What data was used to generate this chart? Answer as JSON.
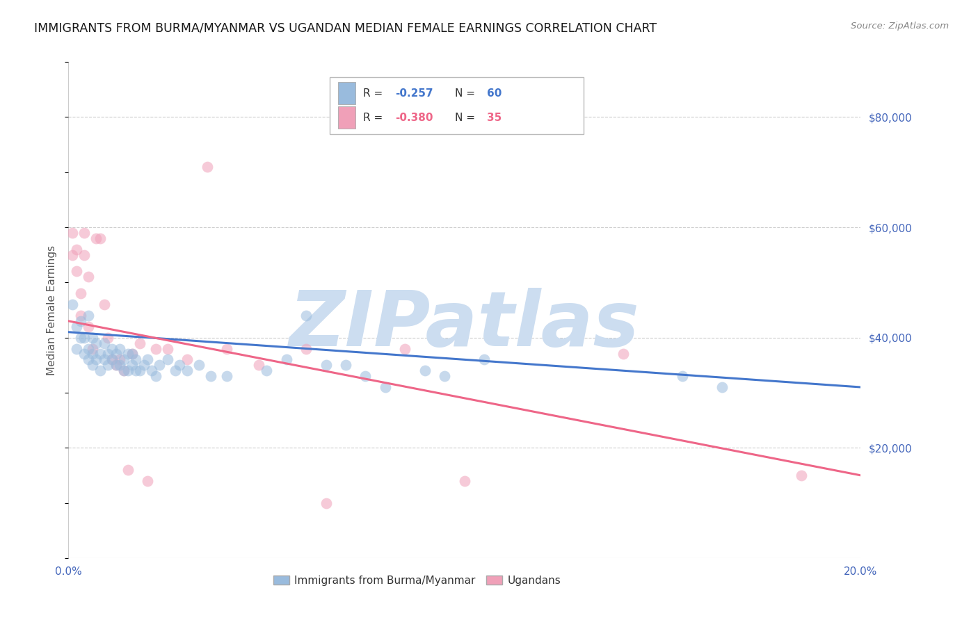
{
  "title": "IMMIGRANTS FROM BURMA/MYANMAR VS UGANDAN MEDIAN FEMALE EARNINGS CORRELATION CHART",
  "source": "Source: ZipAtlas.com",
  "ylabel": "Median Female Earnings",
  "xlim": [
    0.0,
    0.2
  ],
  "ylim": [
    0,
    90000
  ],
  "yticks": [
    0,
    20000,
    40000,
    60000,
    80000
  ],
  "ytick_labels": [
    "",
    "$20,000",
    "$40,000",
    "$60,000",
    "$80,000"
  ],
  "xticks": [
    0.0,
    0.05,
    0.1,
    0.15,
    0.2
  ],
  "xtick_labels": [
    "0.0%",
    "",
    "",
    "",
    "20.0%"
  ],
  "watermark": "ZIPatlas",
  "blue_R": "-0.257",
  "blue_N": "60",
  "pink_R": "-0.380",
  "pink_N": "35",
  "blue_label": "Immigrants from Burma/Myanmar",
  "pink_label": "Ugandans",
  "blue_scatter_x": [
    0.001,
    0.002,
    0.002,
    0.003,
    0.003,
    0.004,
    0.004,
    0.005,
    0.005,
    0.005,
    0.006,
    0.006,
    0.006,
    0.007,
    0.007,
    0.008,
    0.008,
    0.009,
    0.009,
    0.01,
    0.01,
    0.011,
    0.011,
    0.012,
    0.012,
    0.013,
    0.013,
    0.014,
    0.014,
    0.015,
    0.015,
    0.016,
    0.016,
    0.017,
    0.017,
    0.018,
    0.019,
    0.02,
    0.021,
    0.022,
    0.023,
    0.025,
    0.027,
    0.028,
    0.03,
    0.033,
    0.036,
    0.04,
    0.05,
    0.055,
    0.06,
    0.065,
    0.07,
    0.075,
    0.08,
    0.09,
    0.095,
    0.105,
    0.155,
    0.165
  ],
  "blue_scatter_y": [
    46000,
    38000,
    42000,
    40000,
    43000,
    37000,
    40000,
    36000,
    38000,
    44000,
    35000,
    37000,
    40000,
    36000,
    39000,
    34000,
    37000,
    36000,
    39000,
    35000,
    37000,
    36000,
    38000,
    35000,
    37000,
    35000,
    38000,
    34000,
    36000,
    34000,
    37000,
    35000,
    37000,
    34000,
    36000,
    34000,
    35000,
    36000,
    34000,
    33000,
    35000,
    36000,
    34000,
    35000,
    34000,
    35000,
    33000,
    33000,
    34000,
    36000,
    44000,
    35000,
    35000,
    33000,
    31000,
    34000,
    33000,
    36000,
    33000,
    31000
  ],
  "pink_scatter_x": [
    0.001,
    0.001,
    0.002,
    0.002,
    0.003,
    0.003,
    0.004,
    0.004,
    0.005,
    0.005,
    0.006,
    0.007,
    0.008,
    0.009,
    0.01,
    0.011,
    0.012,
    0.013,
    0.014,
    0.015,
    0.016,
    0.018,
    0.02,
    0.022,
    0.025,
    0.03,
    0.035,
    0.04,
    0.048,
    0.06,
    0.065,
    0.085,
    0.1,
    0.14,
    0.185
  ],
  "pink_scatter_y": [
    59000,
    55000,
    56000,
    52000,
    44000,
    48000,
    55000,
    59000,
    51000,
    42000,
    38000,
    58000,
    58000,
    46000,
    40000,
    36000,
    35000,
    36000,
    34000,
    16000,
    37000,
    39000,
    14000,
    38000,
    38000,
    36000,
    71000,
    38000,
    35000,
    38000,
    10000,
    38000,
    14000,
    37000,
    15000
  ],
  "blue_line_x": [
    0.0,
    0.2
  ],
  "blue_line_y": [
    41000,
    31000
  ],
  "pink_line_x": [
    0.0,
    0.2
  ],
  "pink_line_y": [
    43000,
    15000
  ],
  "title_color": "#1a1a1a",
  "title_fontsize": 12.5,
  "source_color": "#888888",
  "axis_tick_color": "#4466bb",
  "ylabel_color": "#555555",
  "grid_color": "#cccccc",
  "watermark_color": "#ccddf0",
  "watermark_fontsize": 80,
  "scatter_size": 130,
  "scatter_alpha": 0.55,
  "blue_line_color": "#4477cc",
  "pink_line_color": "#ee6688",
  "blue_scatter_color": "#99bbdd",
  "pink_scatter_color": "#f0a0b8",
  "legend_blue_text_color": "#4477cc",
  "legend_pink_text_color": "#ee6688",
  "legend_label_color": "#333333"
}
